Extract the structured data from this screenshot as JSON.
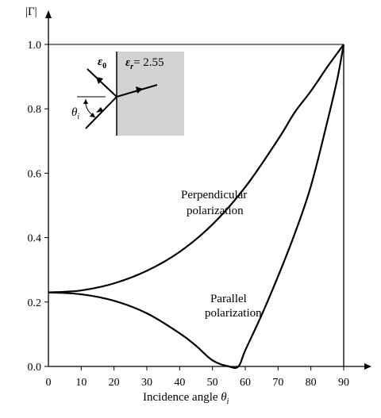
{
  "chart_data": {
    "type": "line",
    "xlabel": "Incidence angle",
    "xlabel_symbol": "θ",
    "xlabel_sub": "i",
    "ylabel": "|Γ|",
    "xlim": [
      0,
      90
    ],
    "ylim": [
      0,
      1.0
    ],
    "x_ticks": [
      "0",
      "10",
      "20",
      "30",
      "40",
      "50",
      "60",
      "70",
      "80",
      "90"
    ],
    "y_ticks": [
      "0.0",
      "0.2",
      "0.4",
      "0.6",
      "0.8",
      "1.0"
    ],
    "grid": false,
    "series": [
      {
        "name_line1": "Perpendicular",
        "name_line2": "polarization",
        "x": [
          0,
          10,
          20,
          30,
          40,
          50,
          60,
          70,
          75,
          80,
          85,
          88,
          90
        ],
        "y": [
          0.23,
          0.236,
          0.258,
          0.297,
          0.356,
          0.441,
          0.557,
          0.705,
          0.788,
          0.855,
          0.93,
          0.972,
          1.0
        ]
      },
      {
        "name_line1": "Parallel",
        "name_line2": "polarization",
        "x": [
          0,
          10,
          20,
          30,
          40,
          45,
          50,
          55,
          57.9,
          60,
          65,
          70,
          75,
          80,
          85,
          88,
          90
        ],
        "y": [
          0.23,
          0.224,
          0.204,
          0.165,
          0.103,
          0.064,
          0.019,
          0.0,
          0.0,
          0.05,
          0.16,
          0.28,
          0.41,
          0.56,
          0.76,
          0.89,
          1.0
        ]
      }
    ],
    "inset": {
      "medium_label": "ε",
      "medium_sub": "0",
      "dielectric_label": "ε",
      "dielectric_sub": "r",
      "dielectric_value": "= 2.55",
      "angle_label": "θ",
      "angle_sub": "i",
      "dielectric_color": "#d3d3d3"
    }
  }
}
